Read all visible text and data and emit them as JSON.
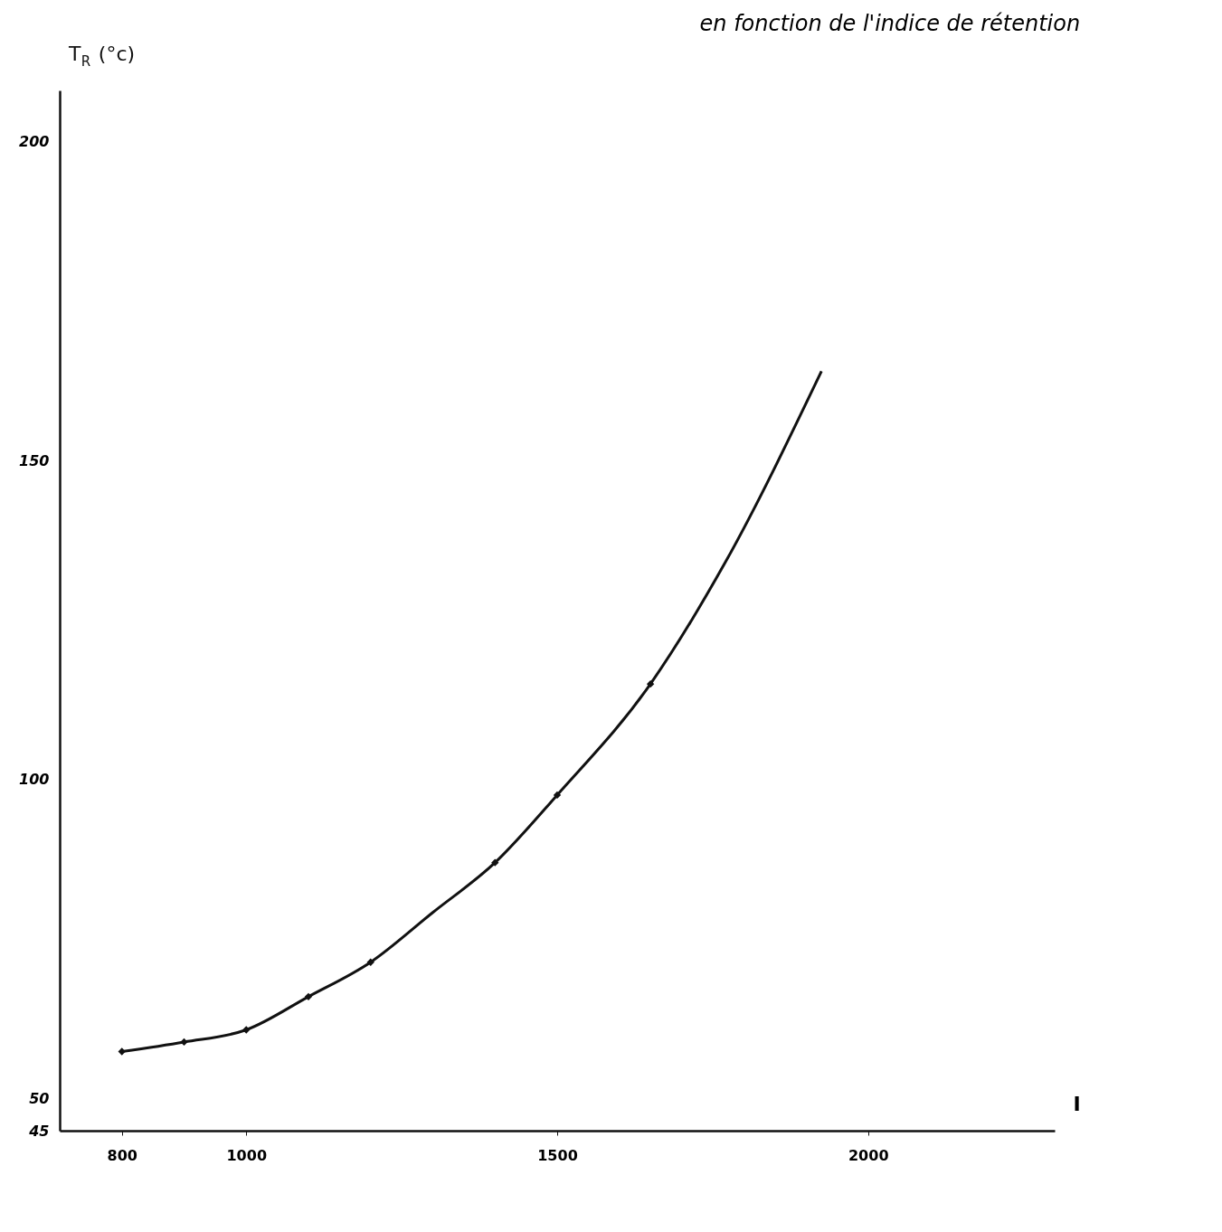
{
  "chart_data": {
    "type": "line",
    "title": "en fonction de l'indice de rétention",
    "xlabel": "I",
    "ylabel": "T$_{R}$ (°c)",
    "xlim": [
      700,
      2300
    ],
    "xticks": [
      800,
      1000,
      1500,
      2000
    ],
    "ylim": [
      45,
      208
    ],
    "yticks": [
      45,
      50,
      100,
      150,
      200
    ],
    "grid": false,
    "series": [
      {
        "color": "#111111",
        "marker": "none",
        "x": [
          800,
          900,
          1000,
          1100,
          1200,
          1300,
          1400,
          1500,
          1650,
          1770,
          1925
        ],
        "values": [
          57.4,
          58.9,
          60.8,
          66.0,
          71.4,
          79.2,
          87.0,
          97.6,
          115,
          134,
          164
        ]
      },
      {
        "type": "scatter",
        "color": "#111111",
        "marker": "diamond",
        "x": [
          800,
          900,
          1000,
          1100,
          1200,
          1400,
          1500,
          1650
        ],
        "values": [
          57.4,
          58.9,
          60.8,
          66.0,
          71.4,
          87.0,
          97.6,
          115
        ]
      }
    ]
  }
}
